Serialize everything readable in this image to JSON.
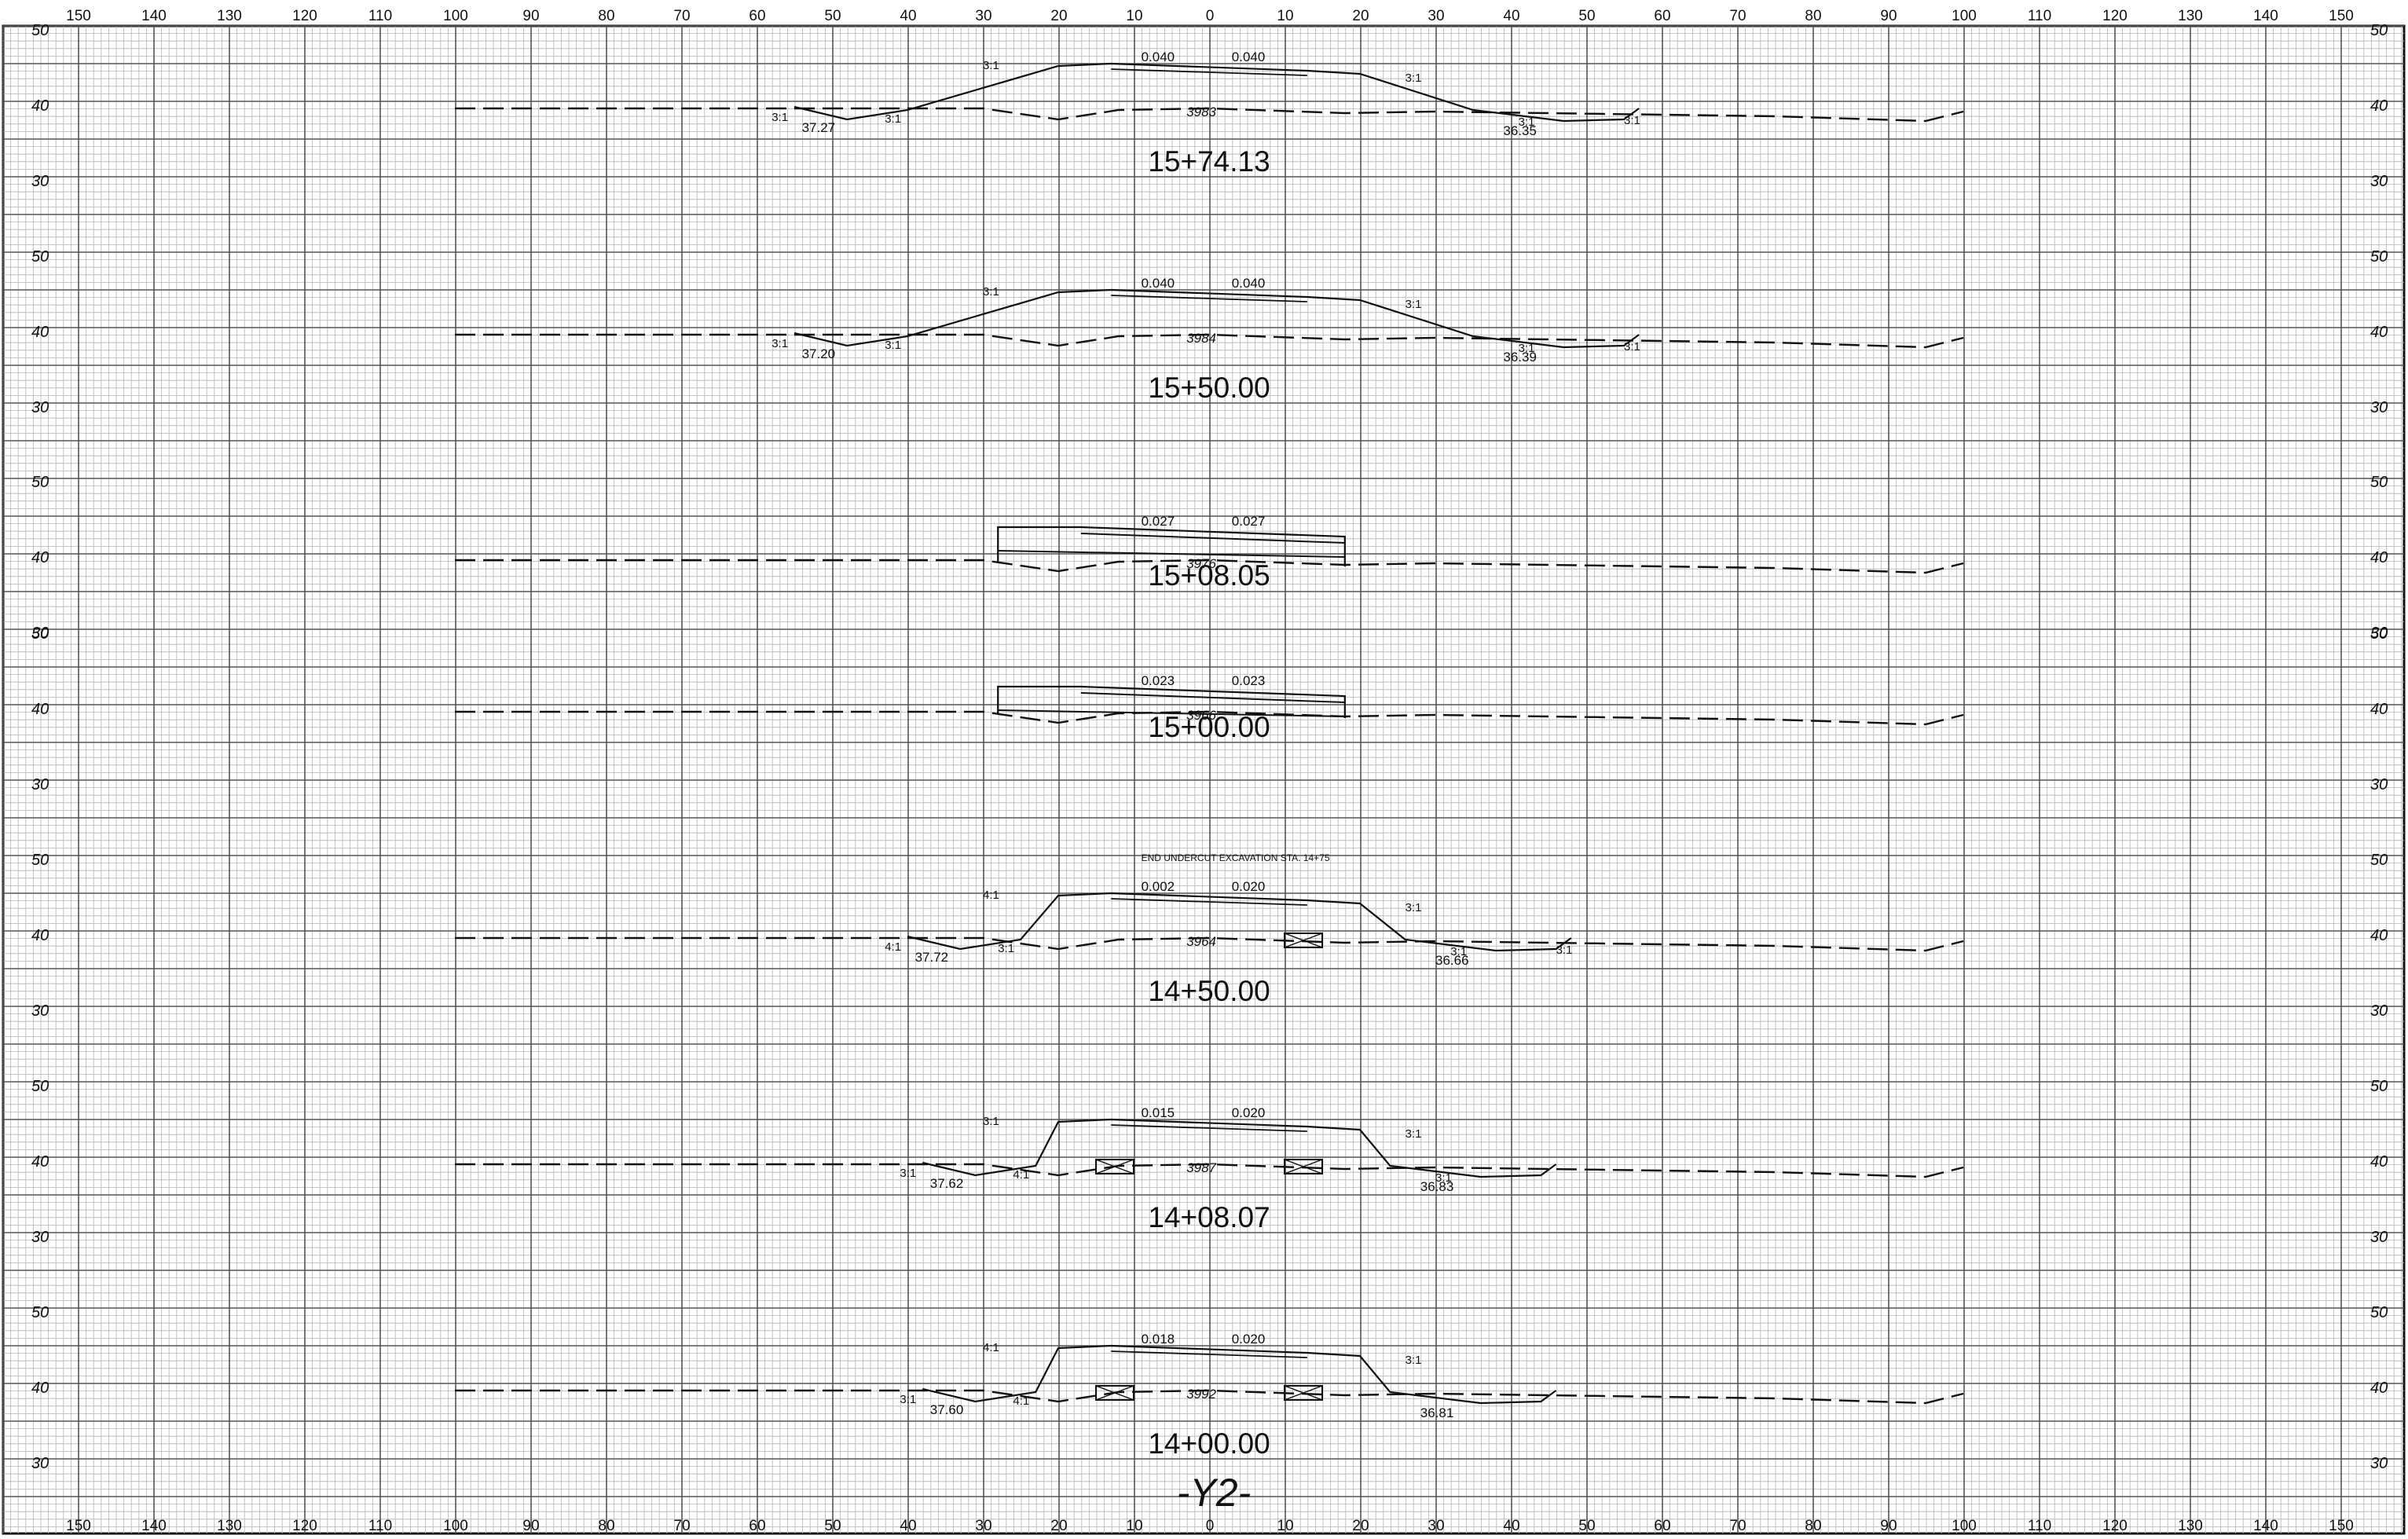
{
  "sheet_id": "-Y2-",
  "axis": {
    "offset_labels": [
      "150",
      "140",
      "130",
      "120",
      "110",
      "100",
      "90",
      "80",
      "70",
      "60",
      "50",
      "40",
      "30",
      "20",
      "10",
      "0",
      "10",
      "20",
      "30",
      "40",
      "50",
      "60",
      "70",
      "80",
      "90",
      "100",
      "110",
      "120",
      "130",
      "140",
      "150"
    ],
    "elevation_labels": [
      "50",
      "40",
      "30"
    ]
  },
  "sections": [
    {
      "station": "15+74.13",
      "grade_left": "0.040",
      "grade_right": "0.040",
      "centerline_elev": "3983",
      "slopes": [
        "3:1",
        "3:1",
        "3:1",
        "3:1",
        "3:1",
        "3:1"
      ],
      "ditch_left": "37.27",
      "ditch_right": "36.35",
      "note": ""
    },
    {
      "station": "15+50.00",
      "grade_left": "0.040",
      "grade_right": "0.040",
      "centerline_elev": "3984",
      "slopes": [
        "3:1",
        "3:1",
        "3:1",
        "3:1",
        "3:1",
        "3:1"
      ],
      "ditch_left": "37.20",
      "ditch_right": "36.39",
      "note": ""
    },
    {
      "station": "15+08.05",
      "grade_left": "0.027",
      "grade_right": "0.027",
      "centerline_elev": "3976",
      "slopes": [],
      "ditch_left": "",
      "ditch_right": "",
      "note": ""
    },
    {
      "station": "15+00.00",
      "grade_left": "0.023",
      "grade_right": "0.023",
      "centerline_elev": "3966",
      "slopes": [],
      "ditch_left": "",
      "ditch_right": "",
      "note": ""
    },
    {
      "station": "14+50.00",
      "grade_left": "0.002",
      "grade_right": "0.020",
      "centerline_elev": "3964",
      "slopes": [
        "4:1",
        "3:1",
        "4:1",
        "3:1",
        "3:1",
        "3:1"
      ],
      "ditch_left": "37.72",
      "ditch_right": "36.66",
      "note": "END UNDERCUT EXCAVATION STA. 14+75"
    },
    {
      "station": "14+08.07",
      "grade_left": "0.015",
      "grade_right": "0.020",
      "centerline_elev": "3987",
      "slopes": [
        "3:1",
        "4:1",
        "3:1",
        "3:1",
        "3:1"
      ],
      "ditch_left": "37.62",
      "ditch_right": "36.83",
      "note": ""
    },
    {
      "station": "14+00.00",
      "grade_left": "0.018",
      "grade_right": "0.020",
      "centerline_elev": "3992",
      "slopes": [
        "3:1",
        "4:1",
        "4:1",
        "3:1"
      ],
      "ditch_left": "37.60",
      "ditch_right": "36.81",
      "note": ""
    }
  ],
  "colors": {
    "ink": "#111111",
    "grid_major": "#555555",
    "grid_minor": "#b5b5b5",
    "paper": "#ffffff"
  }
}
